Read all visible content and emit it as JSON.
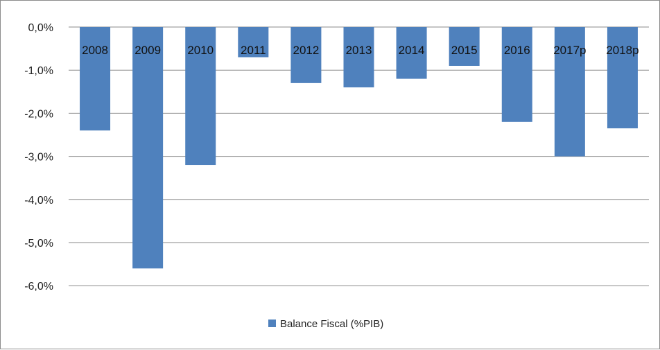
{
  "chart_data": {
    "type": "bar",
    "categories": [
      "2008",
      "2009",
      "2010",
      "2011",
      "2012",
      "2013",
      "2014",
      "2015",
      "2016",
      "2017p",
      "2018p"
    ],
    "series": [
      {
        "name": "Balance Fiscal (%PIB)",
        "color": "#4f81bd",
        "values": [
          -2.4,
          -5.6,
          -3.2,
          -0.7,
          -1.3,
          -1.4,
          -1.2,
          -0.9,
          -2.2,
          -3.0,
          -2.35
        ]
      }
    ],
    "y_ticks": [
      0,
      -1,
      -2,
      -3,
      -4,
      -5,
      -6
    ],
    "y_tick_labels": [
      "0,0%",
      "-1,0%",
      "-2,0%",
      "-3,0%",
      "-4,0%",
      "-5,0%",
      "-6,0%"
    ],
    "ylim": [
      -6,
      0
    ],
    "grid": true,
    "legend_position": "bottom"
  }
}
